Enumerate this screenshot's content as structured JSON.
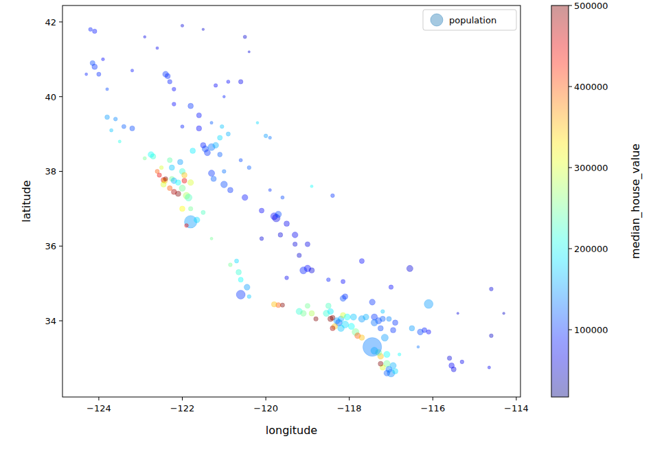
{
  "chart_data": {
    "type": "scatter",
    "xlabel": "longitude",
    "ylabel": "latitude",
    "xlim": [
      -124.87,
      -113.9
    ],
    "ylim": [
      31.96,
      42.44
    ],
    "xticks": [
      {
        "value": -124,
        "label": "−124"
      },
      {
        "value": -122,
        "label": "−122"
      },
      {
        "value": -120,
        "label": "−120"
      },
      {
        "value": -118,
        "label": "−118"
      },
      {
        "value": -116,
        "label": "−116"
      },
      {
        "value": -114,
        "label": "−114"
      }
    ],
    "yticks": [
      34,
      36,
      38,
      40,
      42
    ],
    "legend": "upper right",
    "colorbar": {
      "label": "median_house_value",
      "range": [
        17000,
        500000
      ],
      "ticks": [
        100000,
        200000,
        300000,
        400000,
        500000
      ]
    },
    "series": [
      {
        "name": "population",
        "color": "#1f77b4",
        "x": [
          -124.2,
          -124.1,
          -124.15,
          -124.1,
          -124.0,
          -124.3,
          -123.9,
          -123.8,
          -123.6,
          -123.8,
          -123.7,
          -123.4,
          -123.2,
          -123.5,
          -122.4,
          -122.35,
          -122.3,
          -122.2,
          -122.6,
          -122.0,
          -121.5,
          -120.5,
          -120.4,
          -122.9,
          -123.2,
          -121.2,
          -120.9,
          -120.6,
          -121.0,
          -122.2,
          -121.8,
          -121.6,
          -121.6,
          -122.0,
          -121.3,
          -121.05,
          -120.9,
          -120.2,
          -120.0,
          -119.9,
          -121.1,
          -121.45,
          -121.3,
          -121.4,
          -121.2,
          -121.5,
          -121.75,
          -121.1,
          -121.0,
          -122.45,
          -122.42,
          -122.4,
          -122.25,
          -122.2,
          -122.1,
          -122.0,
          -121.9,
          -121.85,
          -122.1,
          -122.2,
          -122.3,
          -122.45,
          -122.55,
          -122.6,
          -122.7,
          -122.75,
          -122.3,
          -122.25,
          -122.0,
          -121.95,
          -121.8,
          -121.95,
          -122.05,
          -122.9,
          -122.5,
          -122.0,
          -121.8,
          -121.65,
          -121.9,
          -121.8,
          -121.5,
          -121.3,
          -121.3,
          -121.25,
          -121.0,
          -120.85,
          -120.5,
          -120.1,
          -119.8,
          -119.75,
          -119.7,
          -119.5,
          -119.3,
          -119.0,
          -119.3,
          -119.65,
          -120.1,
          -119.2,
          -119.0,
          -119.1,
          -118.9,
          -119.5,
          -118.5,
          -120.4,
          -120.6,
          -119.9,
          -119.6,
          -118.9,
          -118.4,
          -120.65,
          -120.6,
          -120.45,
          -120.4,
          -120.85,
          -120.7,
          -119.7,
          -119.8,
          -119.6,
          -120.6,
          -119.2,
          -119.1,
          -118.9,
          -118.8,
          -119.0,
          -118.5,
          -118.45,
          -118.4,
          -118.3,
          -118.25,
          -118.2,
          -118.15,
          -118.05,
          -118.35,
          -118.4,
          -118.2,
          -118.1,
          -117.95,
          -117.85,
          -117.8,
          -117.7,
          -118.55,
          -118.45,
          -118.15,
          -118.1,
          -117.9,
          -117.7,
          -117.6,
          -117.4,
          -117.3,
          -117.2,
          -117.4,
          -117.25,
          -117.15,
          -117.45,
          -117.0,
          -117.2,
          -117.05,
          -116.9,
          -116.95,
          -117.25,
          -117.3,
          -117.1,
          -117.1,
          -117.2,
          -117.25,
          -117.05,
          -116.95,
          -117.0,
          -117.1,
          -116.9,
          -117.4,
          -117.45,
          -116.5,
          -116.3,
          -116.2,
          -116.1,
          -115.55,
          -115.5,
          -115.6,
          -114.6,
          -114.6,
          -114.65,
          -116.1,
          -116.55,
          -117.7,
          -118.15,
          -115.4,
          -114.3,
          -115.3,
          -116.35,
          -116.8
        ],
        "values": [
          41.8,
          41.75,
          40.9,
          40.8,
          40.6,
          40.6,
          41.0,
          40.2,
          39.4,
          39.45,
          39.1,
          39.2,
          39.15,
          38.8,
          40.6,
          40.55,
          40.4,
          40.2,
          41.3,
          41.9,
          41.8,
          41.6,
          41.2,
          41.6,
          40.7,
          40.3,
          40.4,
          40.4,
          40.0,
          39.8,
          39.75,
          39.5,
          39.15,
          39.2,
          39.3,
          39.2,
          39.0,
          39.3,
          38.95,
          38.9,
          38.9,
          38.6,
          38.65,
          38.5,
          38.7,
          38.7,
          38.55,
          38.45,
          38.0,
          37.77,
          37.75,
          37.8,
          37.8,
          37.75,
          37.7,
          37.55,
          37.35,
          37.3,
          37.4,
          37.45,
          37.55,
          37.65,
          37.9,
          38.0,
          38.4,
          38.45,
          38.3,
          38.1,
          38.0,
          37.9,
          37.7,
          37.75,
          38.25,
          38.35,
          38.1,
          37.0,
          36.65,
          36.7,
          36.55,
          37.0,
          36.9,
          36.2,
          37.95,
          37.8,
          37.65,
          37.5,
          37.3,
          36.95,
          36.8,
          36.75,
          36.85,
          36.6,
          36.3,
          36.05,
          36.05,
          36.3,
          36.2,
          35.75,
          35.4,
          35.35,
          35.35,
          35.15,
          35.1,
          38.1,
          38.3,
          37.5,
          37.3,
          37.6,
          37.35,
          35.3,
          35.1,
          34.9,
          34.65,
          35.5,
          35.6,
          34.42,
          34.44,
          34.42,
          34.7,
          34.25,
          34.2,
          34.2,
          34.05,
          34.4,
          34.4,
          34.05,
          34.08,
          34.0,
          33.95,
          34.05,
          34.15,
          34.1,
          33.85,
          33.8,
          33.8,
          33.9,
          33.85,
          33.7,
          33.6,
          33.55,
          34.2,
          34.25,
          34.6,
          34.65,
          34.1,
          34.05,
          34.1,
          34.1,
          34.0,
          34.05,
          33.95,
          33.8,
          33.55,
          34.5,
          34.9,
          34.25,
          34.05,
          33.95,
          33.75,
          33.05,
          33.15,
          33.1,
          32.85,
          32.75,
          32.85,
          32.7,
          32.8,
          32.6,
          32.6,
          32.65,
          33.2,
          33.3,
          33.8,
          33.7,
          33.75,
          33.7,
          32.8,
          32.7,
          33.0,
          34.85,
          33.6,
          32.75,
          34.45,
          35.4,
          35.6,
          35.05,
          34.2,
          34.2,
          32.9,
          33.3,
          33.1
        ],
        "size": [
          1500,
          2000,
          2500,
          3000,
          1800,
          800,
          1000,
          900,
          1500,
          2200,
          1200,
          1800,
          2500,
          900,
          3500,
          2800,
          2000,
          1500,
          800,
          900,
          600,
          1200,
          500,
          700,
          900,
          1400,
          1200,
          2000,
          700,
          1500,
          3000,
          2500,
          2800,
          1200,
          900,
          1500,
          1800,
          700,
          1500,
          1000,
          2500,
          4000,
          5000,
          3800,
          3500,
          3000,
          3000,
          2200,
          1500,
          2500,
          3000,
          2000,
          2500,
          3500,
          3000,
          4000,
          4500,
          5000,
          3000,
          2800,
          2500,
          3000,
          2000,
          1800,
          3000,
          3500,
          2500,
          3000,
          3500,
          3000,
          3500,
          2500,
          3000,
          1200,
          1500,
          3000,
          16000,
          3500,
          1500,
          2000,
          1800,
          800,
          4000,
          3000,
          4500,
          3000,
          3500,
          2500,
          5000,
          6000,
          4000,
          3000,
          3500,
          2500,
          2000,
          2200,
          1500,
          2000,
          4500,
          5000,
          3000,
          1500,
          1500,
          1500,
          1200,
          900,
          1200,
          800,
          1500,
          3000,
          2500,
          3500,
          1500,
          1500,
          1800,
          2500,
          3000,
          1800,
          8000,
          4000,
          3500,
          3000,
          2000,
          2500,
          3000,
          3000,
          2500,
          4000,
          4500,
          3500,
          3000,
          4000,
          3500,
          2500,
          4500,
          5000,
          4000,
          5000,
          3500,
          3000,
          4000,
          3500,
          3500,
          3000,
          4000,
          4500,
          3500,
          4000,
          4000,
          3000,
          4500,
          3000,
          5000,
          3500,
          2000,
          1500,
          2500,
          3000,
          3000,
          3500,
          4000,
          4000,
          4500,
          3000,
          2500,
          4000,
          4000,
          6000,
          3500,
          3000,
          5000,
          35682,
          3000,
          3500,
          2500,
          2000,
          3000,
          2500,
          2000,
          1500,
          1500,
          900,
          8000,
          4000,
          2500,
          1800,
          500,
          600,
          1500,
          700,
          1000
        ],
        "color_values": [
          90000,
          85000,
          110000,
          100000,
          95000,
          90000,
          80000,
          110000,
          140000,
          150000,
          170000,
          120000,
          110000,
          210000,
          100000,
          95000,
          90000,
          80000,
          70000,
          60000,
          55000,
          55000,
          60000,
          65000,
          85000,
          75000,
          80000,
          70000,
          90000,
          80000,
          100000,
          85000,
          80000,
          90000,
          120000,
          170000,
          160000,
          180000,
          150000,
          130000,
          180000,
          110000,
          130000,
          100000,
          160000,
          90000,
          190000,
          120000,
          130000,
          450000,
          350000,
          500000,
          250000,
          160000,
          200000,
          250000,
          280000,
          230000,
          500000,
          480000,
          400000,
          300000,
          450000,
          400000,
          220000,
          200000,
          240000,
          170000,
          220000,
          350000,
          300000,
          450000,
          150000,
          250000,
          300000,
          320000,
          150000,
          180000,
          450000,
          250000,
          230000,
          250000,
          100000,
          120000,
          110000,
          100000,
          85000,
          75000,
          80000,
          65000,
          110000,
          70000,
          70000,
          65000,
          60000,
          60000,
          60000,
          55000,
          80000,
          90000,
          60000,
          70000,
          90000,
          120000,
          110000,
          100000,
          110000,
          200000,
          100000,
          220000,
          200000,
          150000,
          170000,
          250000,
          180000,
          400000,
          350000,
          500000,
          100000,
          220000,
          250000,
          280000,
          500000,
          250000,
          230000,
          500000,
          500000,
          150000,
          120000,
          160000,
          300000,
          200000,
          350000,
          480000,
          170000,
          180000,
          200000,
          250000,
          400000,
          350000,
          220000,
          190000,
          110000,
          100000,
          170000,
          150000,
          160000,
          100000,
          110000,
          120000,
          130000,
          110000,
          150000,
          100000,
          80000,
          170000,
          140000,
          100000,
          100000,
          350000,
          250000,
          200000,
          250000,
          300000,
          500000,
          130000,
          160000,
          140000,
          120000,
          180000,
          170000,
          135000,
          150000,
          110000,
          90000,
          80000,
          75000,
          65000,
          60000,
          60000,
          50000,
          70000,
          150000,
          60000,
          80000,
          80000,
          60000,
          50000,
          70000,
          130000,
          200000
        ]
      }
    ]
  }
}
